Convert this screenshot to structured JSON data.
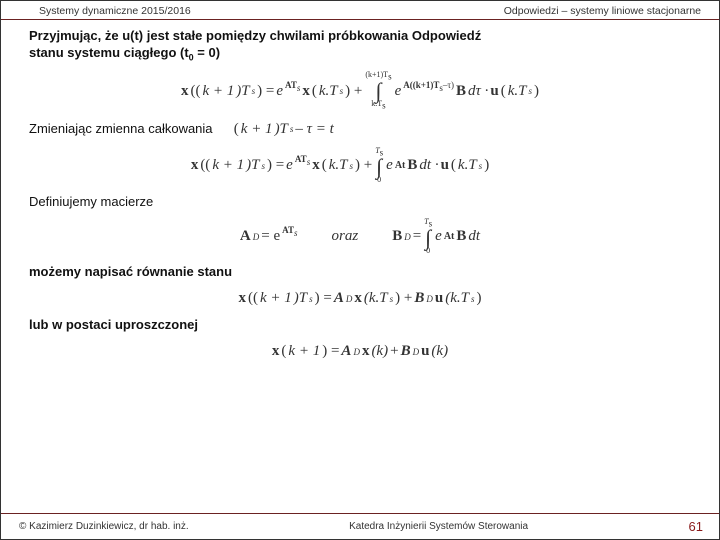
{
  "header": {
    "left": "Systemy dynamiczne 2015/2016",
    "right": "Odpowiedzi – systemy liniowe stacjonarne"
  },
  "p1a": "Przyjmując, że u(t) jest stałe pomiędzy chwilami próbkowania Odpowiedź",
  "p1b_prefix": "stanu systemu ciągłego (t",
  "p1b_sub": "0",
  "p1b_suffix": " = 0)",
  "eq1": {
    "lhs_x": "x",
    "lhs_open": "((",
    "lhs_k1": "k + 1",
    "lhs_close": ")T",
    "Ts_s": "s",
    "eq": ") = ",
    "e1": "e",
    "exp1_A": "AT",
    "exp1_s": "s",
    "x2": "x",
    "arg2_open": "(",
    "arg2_k": "k.T",
    "arg2_close": ") + ",
    "int_up_a": "(k+1)T",
    "int_up_s": "s",
    "int_lo": "k.T",
    "int_lo_s": "s",
    "e2": "e",
    "exp2_A": "A((k+1)T",
    "exp2_s": "s",
    "exp2_tail": "–τ)",
    "B": "B",
    "dtau": "dτ · ",
    "u": "u",
    "arg3_open": "(",
    "arg3": "k.T",
    "arg3_close": ")"
  },
  "p2_prefix": "Zmieniając zmienna całkowania",
  "eq_inline": {
    "open": "(",
    "k1": "k + 1",
    "mid": ")T",
    "s": "s",
    "tail": " – τ = t"
  },
  "eq2": {
    "int_up": "T",
    "int_up_s": "s",
    "int_lo": "0",
    "exp_At": "At",
    "Bdt": "dt · "
  },
  "p3": "Definiujemy macierze",
  "eq3": {
    "AD": "A",
    "D": "D",
    "eq1": " = e",
    "exp": "AT",
    "exp_s": "s",
    "oraz": "oraz",
    "BD": "B",
    "eq2": " = ",
    "int_up": "T",
    "int_lo": "0",
    "e": "e",
    "expAt": "At",
    "B": "B",
    "dt": "dt"
  },
  "p4": "możemy napisać równanie stanu",
  "eq4": {
    "x": "x",
    "open": "((",
    "k1": "k + 1",
    "close": ")T",
    "s": "s",
    "eq": ") = ",
    "AD": "A",
    "D": "D",
    "x2": "x",
    "arg": "(k.T",
    "plus": ") + ",
    "BD": "B",
    "u": "u"
  },
  "p5": "lub w postaci uproszczonej",
  "eq5": {
    "x": "x",
    "open": "(",
    "k1": "k + 1",
    "close": ") = ",
    "AD": "A",
    "D": "D",
    "x2": "x",
    "argk": "(k)",
    "plus": " + ",
    "BD": "B",
    "u": "u",
    "argk2": "(k)"
  },
  "footer": {
    "left": "© Kazimierz Duzinkiewicz, dr hab. inż.",
    "center": "Katedra Inżynierii Systemów Sterowania",
    "page": "61"
  }
}
